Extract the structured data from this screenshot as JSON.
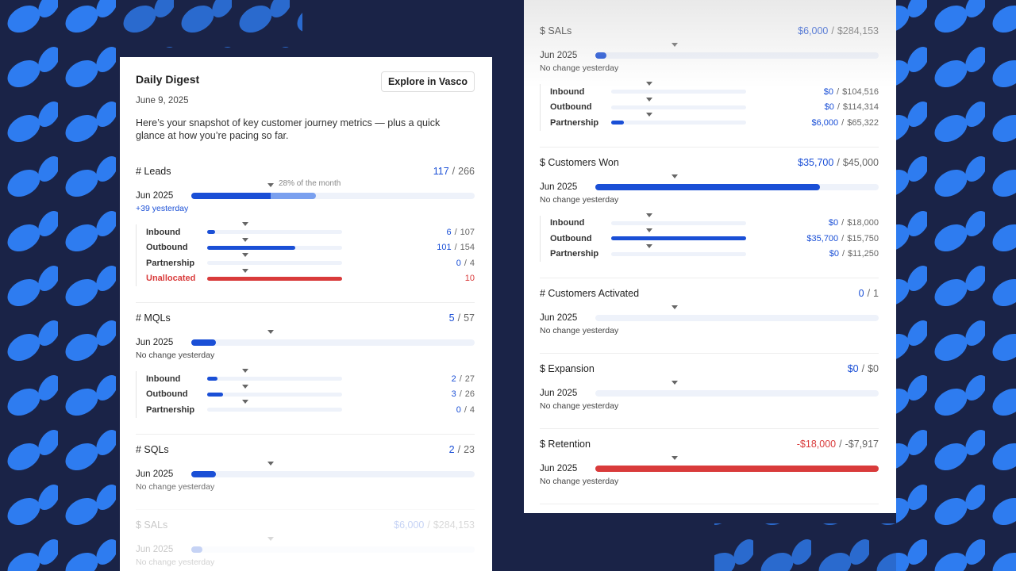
{
  "separator": "/",
  "left": {
    "title": "Daily Digest",
    "date": "June 9, 2025",
    "button": "Explore in Vasco",
    "intro": "Here’s your snapshot of key customer journey metrics — plus a quick glance at how you’re pacing so far.",
    "pace_label": "28% of the month",
    "metrics": [
      {
        "name": "# Leads",
        "value": "117",
        "target": "266",
        "period": "Jun 2025",
        "note": "+39 yesterday",
        "note_color": "#1a4fd6",
        "rows": [
          {
            "name": "Inbound",
            "value": "6",
            "target": "107"
          },
          {
            "name": "Outbound",
            "value": "101",
            "target": "154"
          },
          {
            "name": "Partnership",
            "value": "0",
            "target": "4"
          },
          {
            "name": "Unallocated",
            "value": "10",
            "color": "#d93b3b"
          }
        ]
      },
      {
        "name": "# MQLs",
        "value": "5",
        "target": "57",
        "period": "Jun 2025",
        "note": "No change yesterday",
        "rows": [
          {
            "name": "Inbound",
            "value": "2",
            "target": "27"
          },
          {
            "name": "Outbound",
            "value": "3",
            "target": "26"
          },
          {
            "name": "Partnership",
            "value": "0",
            "target": "4"
          }
        ]
      },
      {
        "name": "# SQLs",
        "value": "2",
        "target": "23",
        "period": "Jun 2025",
        "note": "No change yesterday",
        "rows": []
      },
      {
        "name": "$ SALs",
        "value": "$6,000",
        "target": "$284,153",
        "period": "Jun 2025",
        "note": "No change yesterday",
        "rows": []
      }
    ]
  },
  "right": {
    "metrics": [
      {
        "name": "$ SALs",
        "value": "$6,000",
        "target": "$284,153",
        "period": "Jun 2025",
        "note": "No change yesterday",
        "rows": [
          {
            "name": "Inbound",
            "value": "$0",
            "target": "$104,516"
          },
          {
            "name": "Outbound",
            "value": "$0",
            "target": "$114,314"
          },
          {
            "name": "Partnership",
            "value": "$6,000",
            "target": "$65,322"
          }
        ]
      },
      {
        "name": "$ Customers Won",
        "value": "$35,700",
        "target": "$45,000",
        "period": "Jun 2025",
        "note": "No change yesterday",
        "rows": [
          {
            "name": "Inbound",
            "value": "$0",
            "target": "$18,000"
          },
          {
            "name": "Outbound",
            "value": "$35,700",
            "target": "$15,750"
          },
          {
            "name": "Partnership",
            "value": "$0",
            "target": "$11,250"
          }
        ]
      },
      {
        "name": "# Customers Activated",
        "value": "0",
        "target": "1",
        "period": "Jun 2025",
        "note": "No change yesterday",
        "rows": []
      },
      {
        "name": "$ Expansion",
        "value": "$0",
        "target": "$0",
        "period": "Jun 2025",
        "note": "No change yesterday",
        "rows": []
      },
      {
        "name": "$ Retention",
        "value": "-$18,000",
        "target": "-$7,917",
        "period": "Jun 2025",
        "note": "No change yesterday",
        "rows": [],
        "color": "#d93b3b"
      }
    ]
  }
}
